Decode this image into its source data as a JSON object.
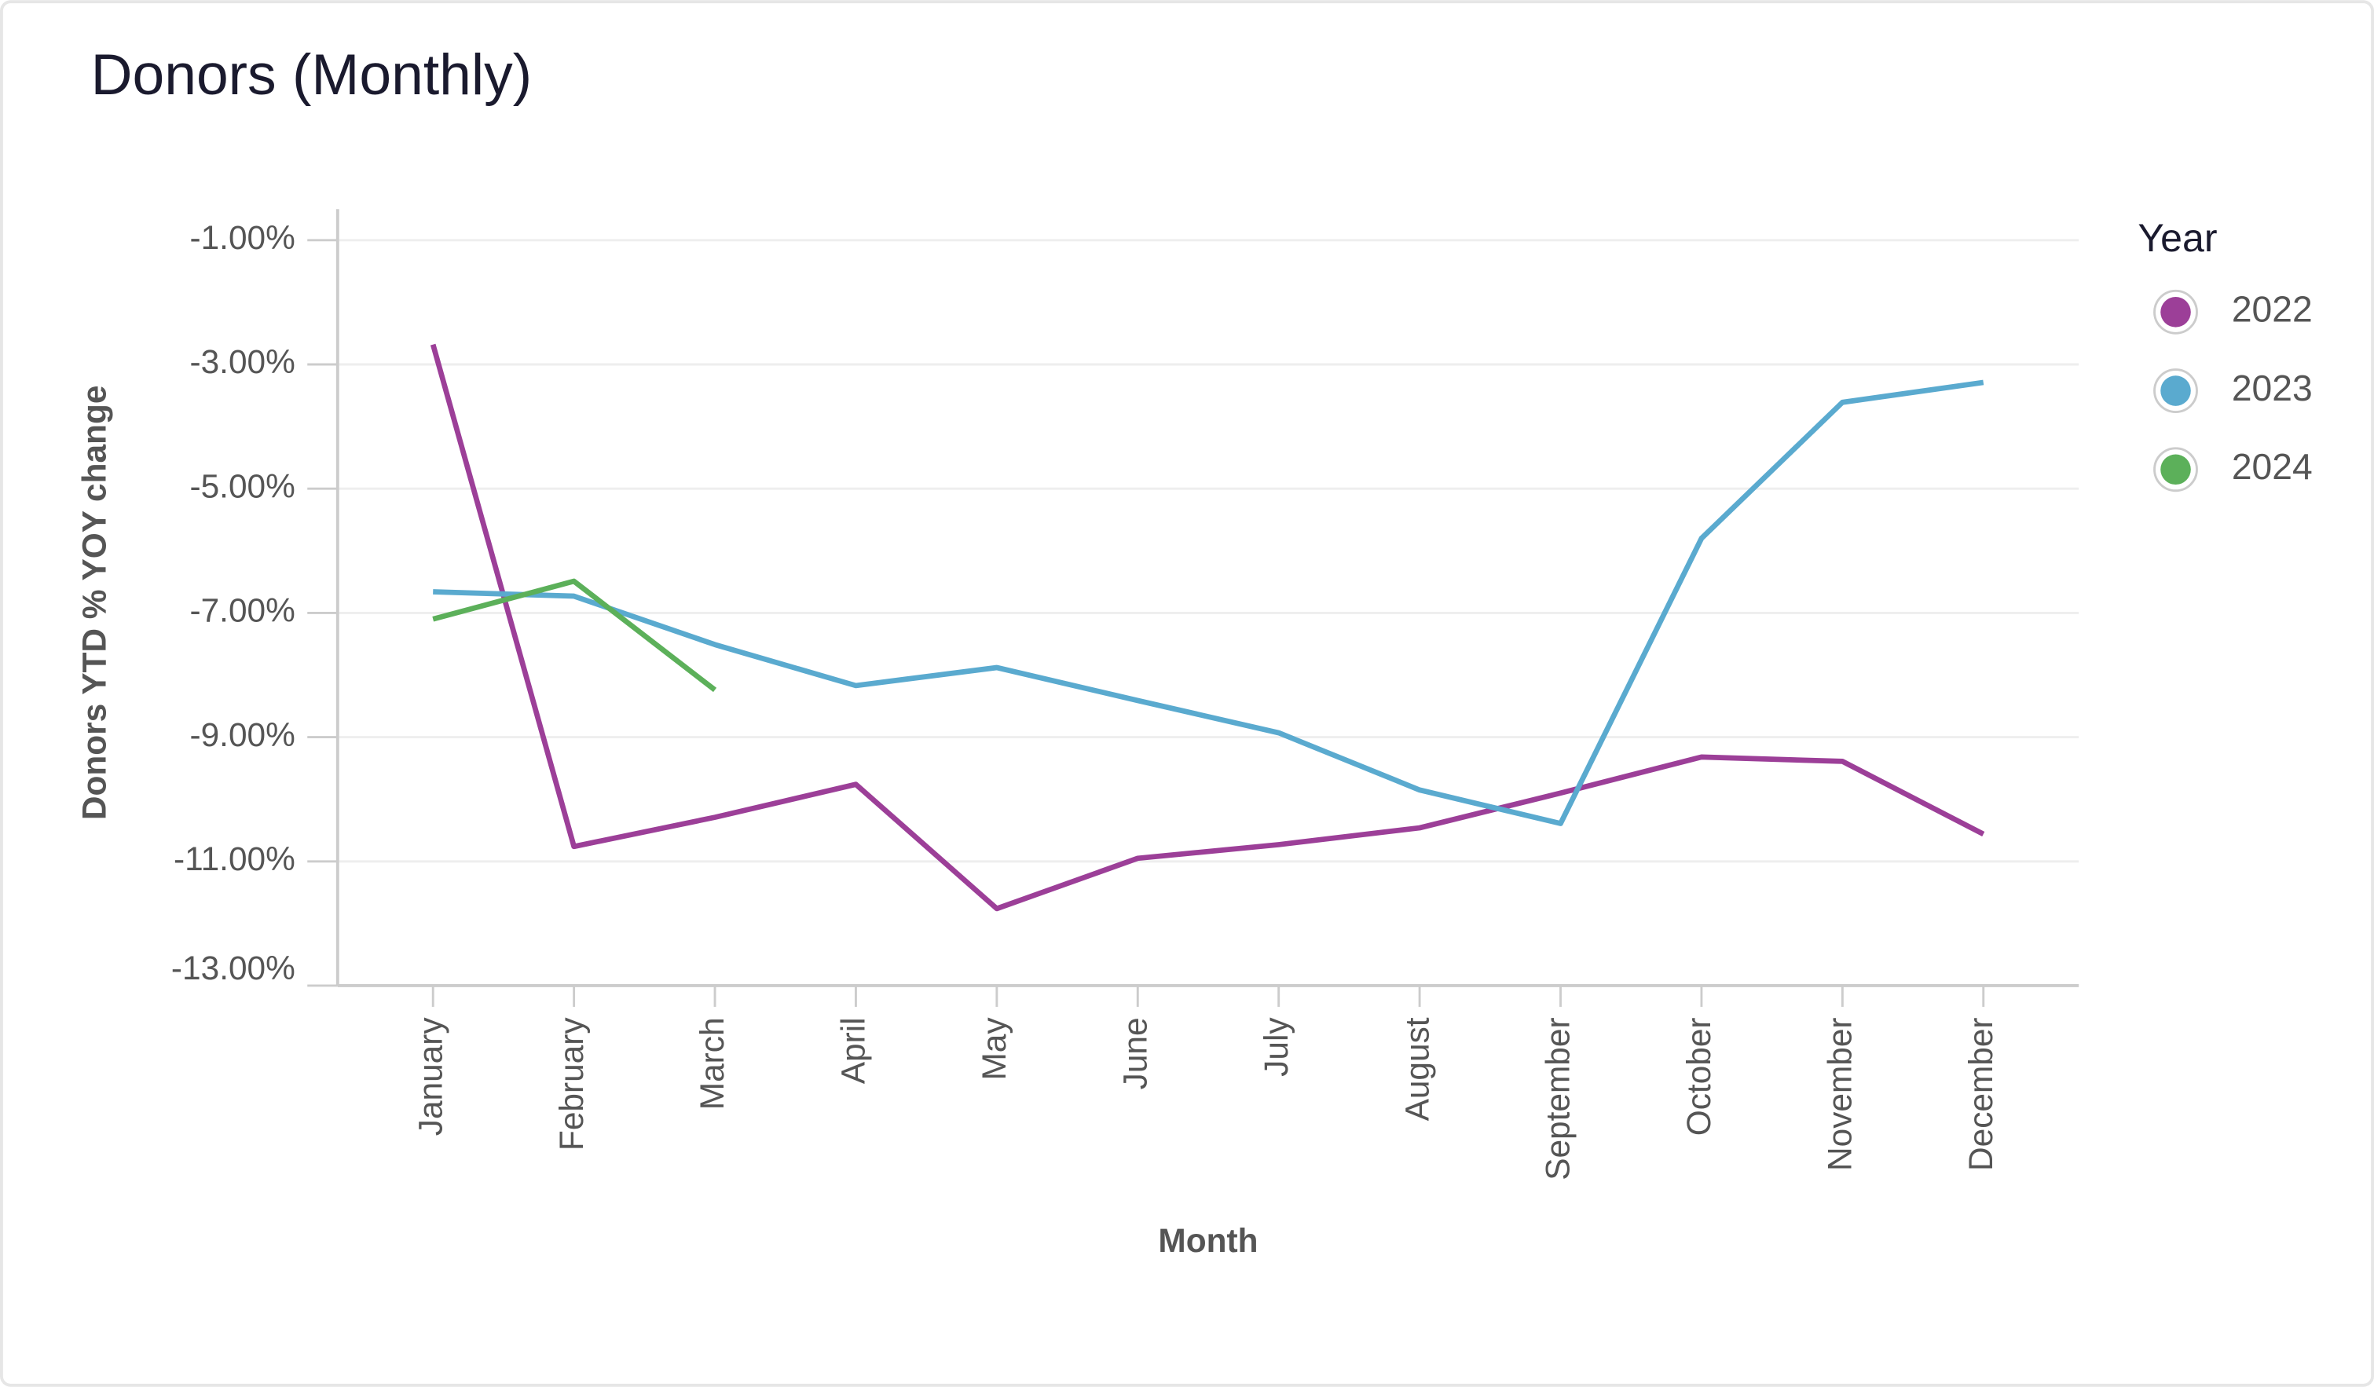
{
  "chart_data": {
    "type": "line",
    "title": "Donors (Monthly)",
    "x_label": "Month",
    "y_label": "Donors YTD % YOY change",
    "legend_title": "Year",
    "legend": "right",
    "categories": [
      "January",
      "February",
      "March",
      "April",
      "May",
      "June",
      "July",
      "August",
      "September",
      "October",
      "November",
      "December"
    ],
    "series": [
      {
        "name": "2022",
        "color": "#9c3f98",
        "values": [
          -2.68,
          -10.76,
          -10.29,
          -9.76,
          -11.76,
          -10.95,
          -10.73,
          -10.46,
          -9.9,
          -9.32,
          -9.39,
          -10.56
        ]
      },
      {
        "name": "2023",
        "color": "#5aaacf",
        "values": [
          -6.66,
          -6.73,
          -7.51,
          -8.17,
          -7.88,
          -8.41,
          -8.93,
          -9.85,
          -10.39,
          -5.8,
          -3.61,
          -3.29
        ]
      },
      {
        "name": "2024",
        "color": "#5cb05a",
        "values": [
          -7.1,
          -6.49,
          -8.24,
          null,
          null,
          null,
          null,
          null,
          null,
          null,
          null,
          null
        ]
      }
    ],
    "ylim": [
      -13,
      -0.5
    ],
    "yticks": [
      {
        "value": -1,
        "label": "-1.00%"
      },
      {
        "value": -3,
        "label": "-3.00%"
      },
      {
        "value": -5,
        "label": "-5.00%"
      },
      {
        "value": -7,
        "label": "-7.00%"
      },
      {
        "value": -9,
        "label": "-9.00%"
      },
      {
        "value": -11,
        "label": "-11.00%"
      },
      {
        "value": -13,
        "label": "-13.00%"
      }
    ],
    "grid": true
  }
}
